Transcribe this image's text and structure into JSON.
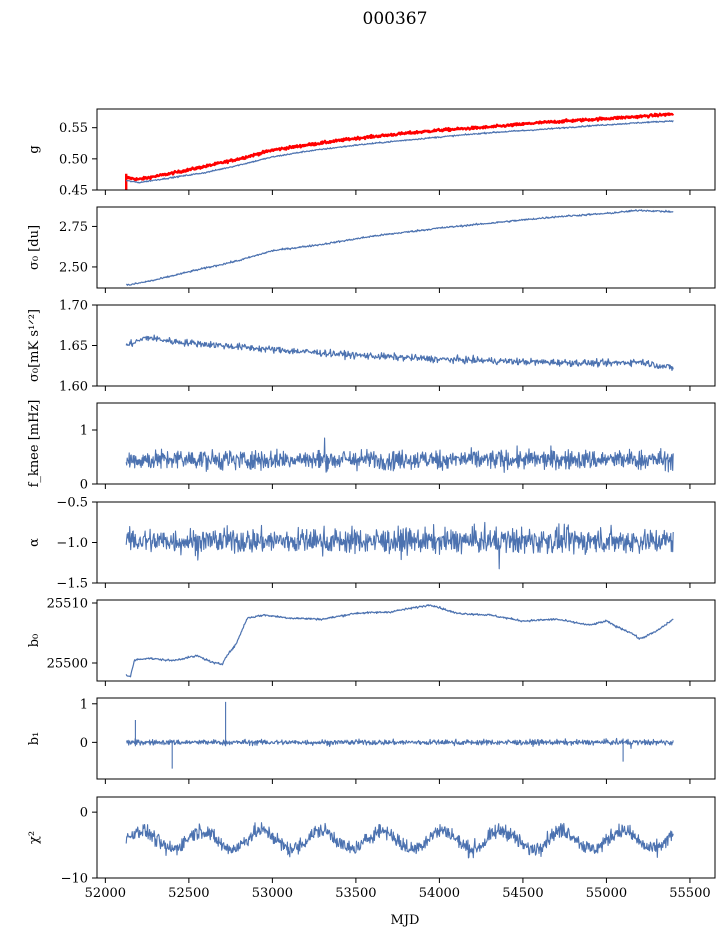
{
  "figure": {
    "title": "000367",
    "xlabel": "MJD"
  },
  "colors": {
    "series": "#4c72b0",
    "overlay": "#ff0000",
    "axes": "#000000"
  },
  "chart_data": {
    "type": "line",
    "x_range": [
      51950,
      55650
    ],
    "x_ticks": [
      52000,
      52500,
      53000,
      53500,
      54000,
      54500,
      55000,
      55500
    ],
    "x_tick_labels": [
      "52000",
      "52500",
      "53000",
      "53500",
      "54000",
      "54500",
      "55000",
      "55500"
    ],
    "data_span": [
      52125,
      55400
    ],
    "panels": [
      {
        "id": "g",
        "ylabel": "g",
        "ylim": [
          0.45,
          0.58
        ],
        "yticks": [
          0.45,
          0.5,
          0.55
        ],
        "ytick_labels": [
          "0.45",
          "0.50",
          "0.55"
        ],
        "series": [
          {
            "kind": "trend",
            "color": "overlay",
            "width": 2.4,
            "points": [
              [
                52125,
                0.47
              ],
              [
                52200,
                0.467
              ],
              [
                52400,
                0.477
              ],
              [
                52600,
                0.488
              ],
              [
                52800,
                0.5
              ],
              [
                53000,
                0.514
              ],
              [
                53200,
                0.522
              ],
              [
                53500,
                0.533
              ],
              [
                53800,
                0.541
              ],
              [
                54000,
                0.546
              ],
              [
                54300,
                0.551
              ],
              [
                54600,
                0.558
              ],
              [
                54900,
                0.563
              ],
              [
                55200,
                0.568
              ],
              [
                55400,
                0.572
              ]
            ],
            "noise": 0.0015,
            "spikes": [
              [
                52125,
                0.45,
                0.476
              ]
            ]
          },
          {
            "kind": "trend",
            "color": "series",
            "width": 1.2,
            "points": [
              [
                52125,
                0.465
              ],
              [
                52200,
                0.462
              ],
              [
                52400,
                0.47
              ],
              [
                52600,
                0.478
              ],
              [
                52800,
                0.49
              ],
              [
                53000,
                0.503
              ],
              [
                53200,
                0.512
              ],
              [
                53500,
                0.522
              ],
              [
                53800,
                0.53
              ],
              [
                54000,
                0.535
              ],
              [
                54300,
                0.542
              ],
              [
                54600,
                0.547
              ],
              [
                54900,
                0.553
              ],
              [
                55200,
                0.558
              ],
              [
                55400,
                0.561
              ]
            ],
            "noise": 0.0008
          }
        ]
      },
      {
        "id": "sigma0-du",
        "ylabel": "σ₀ [du]",
        "ylim": [
          2.37,
          2.87
        ],
        "yticks": [
          2.5,
          2.75
        ],
        "ytick_labels": [
          "2.50",
          "2.75"
        ],
        "series": [
          {
            "kind": "trend",
            "color": "series",
            "width": 1.2,
            "points": [
              [
                52150,
                2.39
              ],
              [
                52300,
                2.42
              ],
              [
                52500,
                2.47
              ],
              [
                52800,
                2.54
              ],
              [
                53000,
                2.6
              ],
              [
                53300,
                2.64
              ],
              [
                53600,
                2.69
              ],
              [
                54000,
                2.74
              ],
              [
                54300,
                2.77
              ],
              [
                54700,
                2.81
              ],
              [
                55000,
                2.83
              ],
              [
                55200,
                2.85
              ],
              [
                55400,
                2.84
              ]
            ],
            "noise": 0.004
          }
        ]
      },
      {
        "id": "sigma0-mk",
        "ylabel": "σ₀[mK s¹ᐟ²]",
        "ylim": [
          1.6,
          1.7
        ],
        "yticks": [
          1.6,
          1.65,
          1.7
        ],
        "ytick_labels": [
          "1.60",
          "1.65",
          "1.70"
        ],
        "series": [
          {
            "kind": "trend",
            "color": "series",
            "width": 1.2,
            "points": [
              [
                52125,
                1.65
              ],
              [
                52250,
                1.66
              ],
              [
                52400,
                1.655
              ],
              [
                52700,
                1.65
              ],
              [
                53000,
                1.645
              ],
              [
                53500,
                1.638
              ],
              [
                54000,
                1.633
              ],
              [
                54500,
                1.63
              ],
              [
                55000,
                1.628
              ],
              [
                55200,
                1.63
              ],
              [
                55400,
                1.622
              ]
            ],
            "noise": 0.003
          }
        ]
      },
      {
        "id": "fknee",
        "ylabel": "f_knee [mHz]",
        "ylim": [
          0,
          1.5
        ],
        "yticks": [
          0,
          1
        ],
        "ytick_labels": [
          "0",
          "1"
        ],
        "series": [
          {
            "kind": "noise",
            "color": "series",
            "width": 1.1,
            "mean": 0.45,
            "amp": 0.13,
            "min": 0.08,
            "max": 0.98
          }
        ]
      },
      {
        "id": "alpha",
        "ylabel": "α",
        "ylim": [
          -1.5,
          -0.5
        ],
        "yticks": [
          -1.5,
          -1.0,
          -0.5
        ],
        "ytick_labels": [
          "−1.5",
          "−1.0",
          "−0.5"
        ],
        "series": [
          {
            "kind": "noise",
            "color": "series",
            "width": 1.1,
            "mean": -0.98,
            "amp": 0.11,
            "min": -1.43,
            "max": -0.5
          }
        ]
      },
      {
        "id": "b0",
        "ylabel": "b₀",
        "ylim": [
          25497,
          25510.5
        ],
        "yticks": [
          25500,
          25510
        ],
        "ytick_labels": [
          "25500",
          "25510"
        ],
        "series": [
          {
            "kind": "trend",
            "color": "series",
            "width": 1.2,
            "points": [
              [
                52125,
                25498
              ],
              [
                52150,
                25497.7
              ],
              [
                52175,
                25500.5
              ],
              [
                52250,
                25500.8
              ],
              [
                52400,
                25500.4
              ],
              [
                52550,
                25501.2
              ],
              [
                52650,
                25500
              ],
              [
                52700,
                25499.8
              ],
              [
                52720,
                25501
              ],
              [
                52780,
                25503
              ],
              [
                52850,
                25507.5
              ],
              [
                52950,
                25508
              ],
              [
                53100,
                25507.5
              ],
              [
                53300,
                25507.3
              ],
              [
                53500,
                25508.3
              ],
              [
                53700,
                25508.5
              ],
              [
                53950,
                25509.7
              ],
              [
                54100,
                25508.3
              ],
              [
                54300,
                25508
              ],
              [
                54500,
                25507
              ],
              [
                54700,
                25507.3
              ],
              [
                54900,
                25506.3
              ],
              [
                55000,
                25507
              ],
              [
                55050,
                25506.2
              ],
              [
                55150,
                25505
              ],
              [
                55200,
                25504
              ],
              [
                55300,
                25505.3
              ],
              [
                55400,
                25507.3
              ]
            ],
            "noise": 0.12
          }
        ]
      },
      {
        "id": "b1",
        "ylabel": "b₁",
        "ylim": [
          -0.95,
          1.15
        ],
        "yticks": [
          0,
          1
        ],
        "ytick_labels": [
          "0",
          "1"
        ],
        "series": [
          {
            "kind": "noise",
            "color": "series",
            "width": 1.1,
            "mean": 0.0,
            "amp": 0.05,
            "min": -0.9,
            "max": 1.1,
            "spikes": [
              [
                52180,
                -0.1,
                0.58
              ],
              [
                52400,
                -0.68,
                0.05
              ],
              [
                52720,
                -0.1,
                1.05
              ],
              [
                55100,
                -0.5,
                0.1
              ]
            ]
          }
        ]
      },
      {
        "id": "chi2",
        "ylabel": "χ²",
        "ylim": [
          -10,
          2.3
        ],
        "yticks": [
          -10,
          0
        ],
        "ytick_labels": [
          "−10",
          "0"
        ],
        "series": [
          {
            "kind": "wave",
            "color": "series",
            "width": 1.1,
            "mean": -4.2,
            "amp": 1.4,
            "period": 360,
            "noise": 0.8,
            "min": -10,
            "max": -0.3
          }
        ]
      }
    ]
  }
}
